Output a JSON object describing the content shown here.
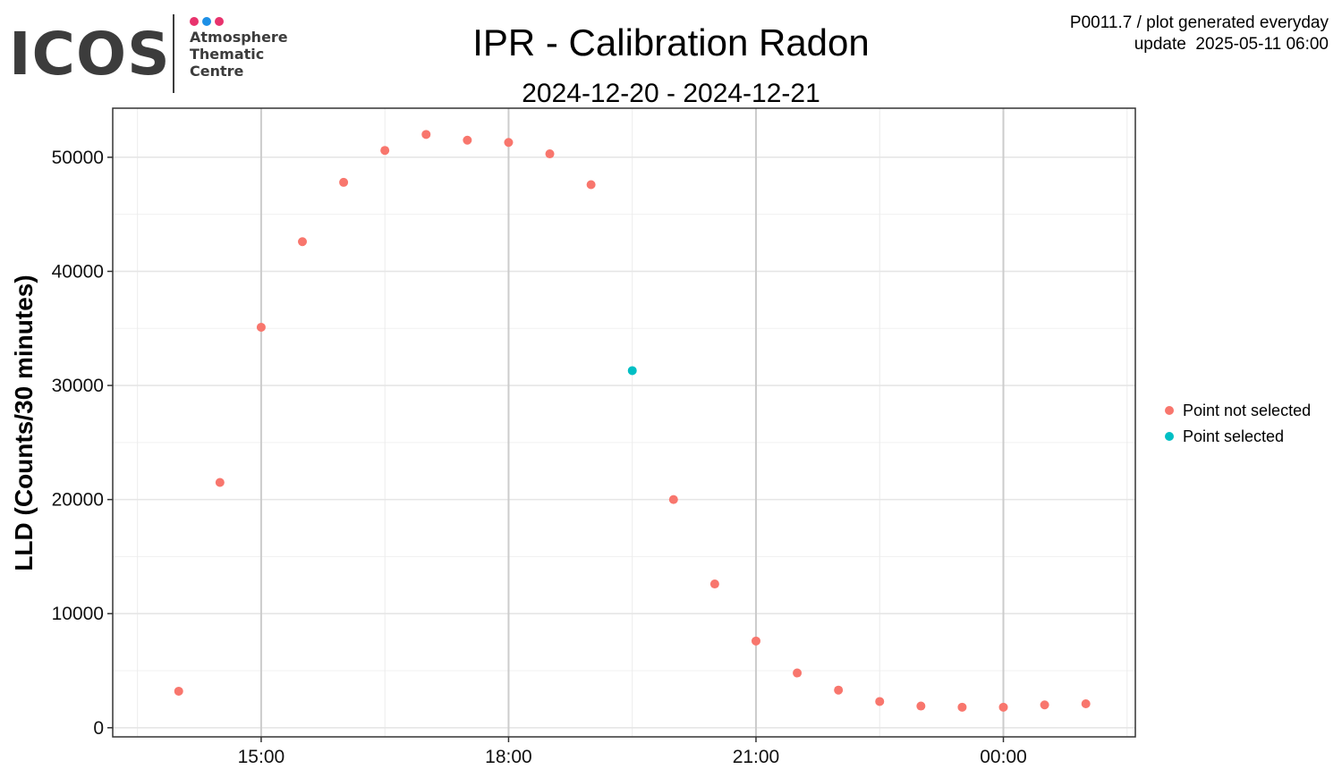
{
  "logo": {
    "word": "ICOS",
    "lines": [
      "Atmosphere",
      "Thematic",
      "Centre"
    ],
    "dot_colors": [
      "#e8336d",
      "#1e90e6",
      "#e8336d"
    ]
  },
  "header": {
    "title": "IPR - Calibration Radon",
    "subtitle": "2024-12-20 - 2024-12-21",
    "note_line1": "P0011.7 / plot generated everyday",
    "note_line2": "update  2025-05-11 06:00"
  },
  "chart_data": {
    "type": "scatter",
    "title": "IPR - Calibration Radon",
    "subtitle": "2024-12-20 - 2024-12-21",
    "xlabel": "",
    "ylabel": "LLD (Counts/30 minutes)",
    "x_ticks": [
      "15:00",
      "18:00",
      "21:00",
      "00:00"
    ],
    "x_tick_hours": [
      15,
      18,
      21,
      24
    ],
    "xlim_hours": [
      13.2,
      25.6
    ],
    "ylim": [
      -800,
      54300
    ],
    "y_ticks": [
      0,
      10000,
      20000,
      30000,
      40000,
      50000
    ],
    "grid": true,
    "legend_position": "right",
    "series": [
      {
        "name": "Point not selected",
        "color": "#f8766d",
        "points": [
          {
            "x": "2024-12-20 14:00",
            "y": 3200
          },
          {
            "x": "2024-12-20 14:30",
            "y": 21500
          },
          {
            "x": "2024-12-20 15:00",
            "y": 35100
          },
          {
            "x": "2024-12-20 15:30",
            "y": 42600
          },
          {
            "x": "2024-12-20 16:00",
            "y": 47800
          },
          {
            "x": "2024-12-20 16:30",
            "y": 50600
          },
          {
            "x": "2024-12-20 17:00",
            "y": 52000
          },
          {
            "x": "2024-12-20 17:30",
            "y": 51500
          },
          {
            "x": "2024-12-20 18:00",
            "y": 51300
          },
          {
            "x": "2024-12-20 18:30",
            "y": 50300
          },
          {
            "x": "2024-12-20 19:00",
            "y": 47600
          },
          {
            "x": "2024-12-20 20:00",
            "y": 20000
          },
          {
            "x": "2024-12-20 20:30",
            "y": 12600
          },
          {
            "x": "2024-12-20 21:00",
            "y": 7600
          },
          {
            "x": "2024-12-20 21:30",
            "y": 4800
          },
          {
            "x": "2024-12-20 22:00",
            "y": 3300
          },
          {
            "x": "2024-12-20 22:30",
            "y": 2300
          },
          {
            "x": "2024-12-20 23:00",
            "y": 1900
          },
          {
            "x": "2024-12-20 23:30",
            "y": 1800
          },
          {
            "x": "2024-12-21 00:00",
            "y": 1800
          },
          {
            "x": "2024-12-21 00:30",
            "y": 2000
          },
          {
            "x": "2024-12-21 01:00",
            "y": 2100
          }
        ]
      },
      {
        "name": "Point selected",
        "color": "#00bfc4",
        "points": [
          {
            "x": "2024-12-20 19:30",
            "y": 31300
          }
        ]
      }
    ]
  }
}
